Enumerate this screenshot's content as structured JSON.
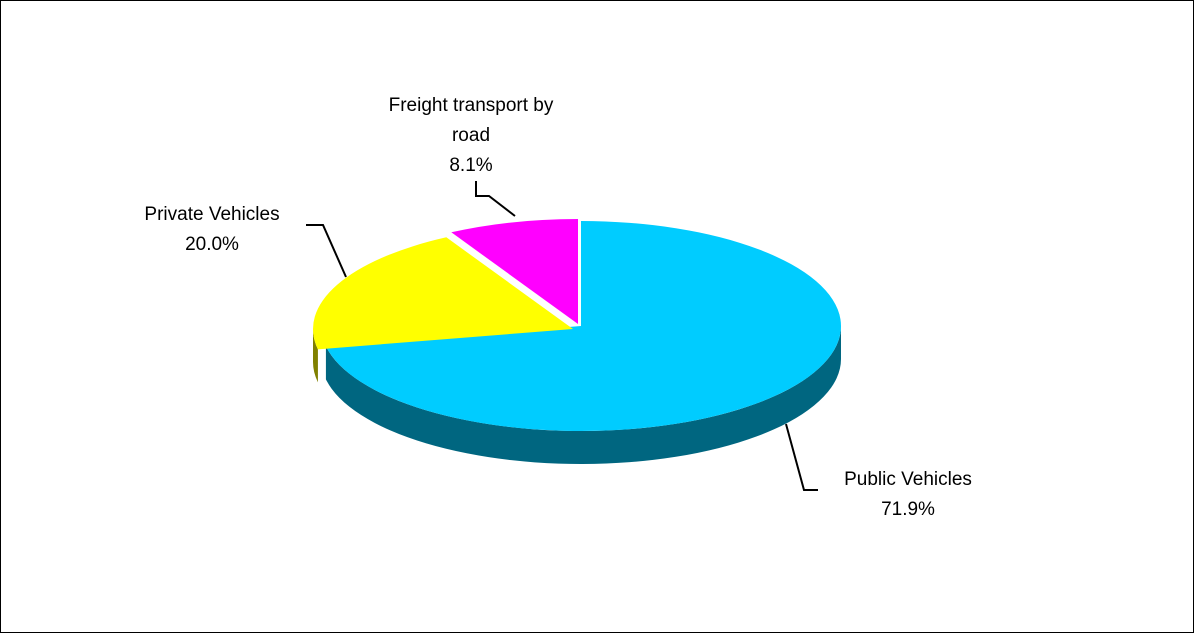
{
  "chart_data": {
    "type": "pie",
    "style": "3d-exploded",
    "slices": [
      {
        "label": "Public Vehicles",
        "value": 71.9,
        "value_label": "71.9%",
        "color": "#00CCFF",
        "side_color": "#006680"
      },
      {
        "label": "Private Vehicles",
        "value": 20.0,
        "value_label": "20.0%",
        "color": "#FFFF00",
        "side_color": "#808000"
      },
      {
        "label_lines": [
          "Freight transport by",
          "road"
        ],
        "value": 8.1,
        "value_label": "8.1%",
        "color": "#FF00FF",
        "side_color": "#800080"
      }
    ],
    "legend": "none",
    "labels": "outside-with-leader-lines"
  }
}
